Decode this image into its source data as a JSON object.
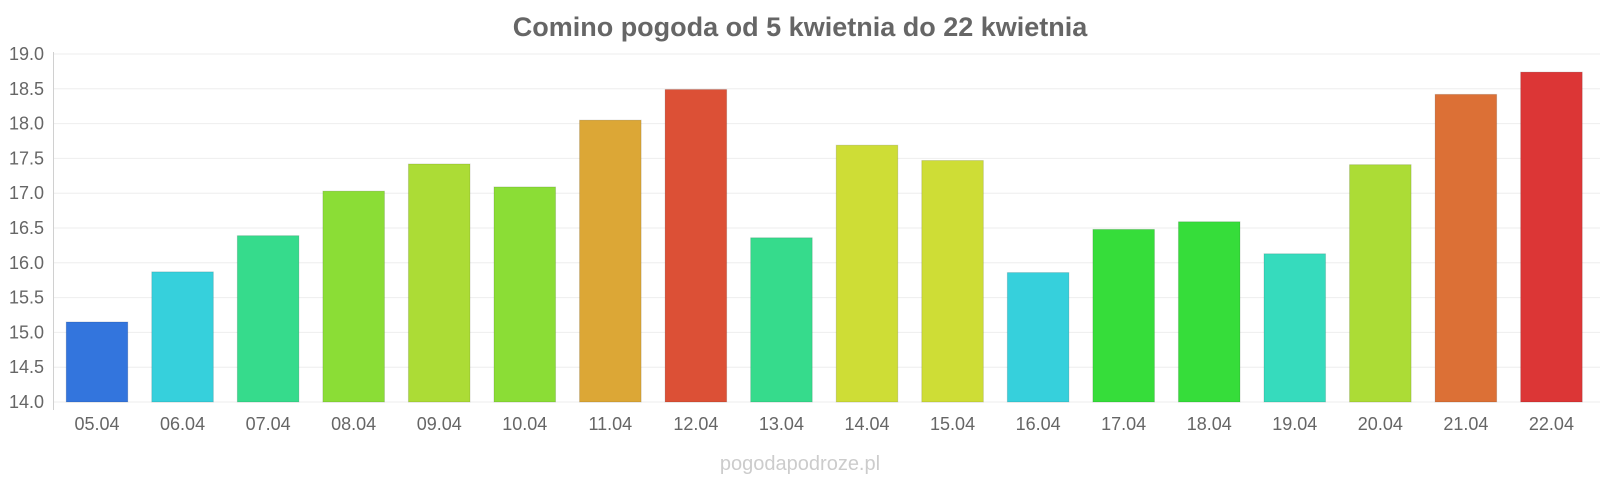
{
  "watermark": "pogodapodroze.pl",
  "chart_data": {
    "type": "bar",
    "title": "Comino pogoda od 5 kwietnia do 22 kwietnia",
    "xlabel": "",
    "ylabel": "",
    "ylim": [
      14.0,
      19.0
    ],
    "yticks": [
      "14.0",
      "14.5",
      "15.0",
      "15.5",
      "16.0",
      "16.5",
      "17.0",
      "17.5",
      "18.0",
      "18.5",
      "19.0"
    ],
    "grid": true,
    "categories": [
      "05.04",
      "06.04",
      "07.04",
      "08.04",
      "09.04",
      "10.04",
      "11.04",
      "12.04",
      "13.04",
      "14.04",
      "15.04",
      "16.04",
      "17.04",
      "18.04",
      "19.04",
      "20.04",
      "21.04",
      "22.04"
    ],
    "values": [
      15.15,
      15.87,
      16.39,
      17.03,
      17.42,
      17.09,
      18.05,
      18.49,
      16.36,
      17.69,
      17.47,
      15.86,
      16.48,
      16.59,
      16.13,
      17.41,
      18.42,
      18.74
    ],
    "colors": [
      "#3375dd",
      "#36d0dc",
      "#36db8c",
      "#8bdd36",
      "#acdc36",
      "#8bdd36",
      "#dca736",
      "#dc5036",
      "#36db8c",
      "#cedd36",
      "#cedd36",
      "#36d0dc",
      "#36dd3a",
      "#36dd3a",
      "#36dbbd",
      "#acdc36",
      "#dc7036",
      "#dc3636"
    ]
  }
}
